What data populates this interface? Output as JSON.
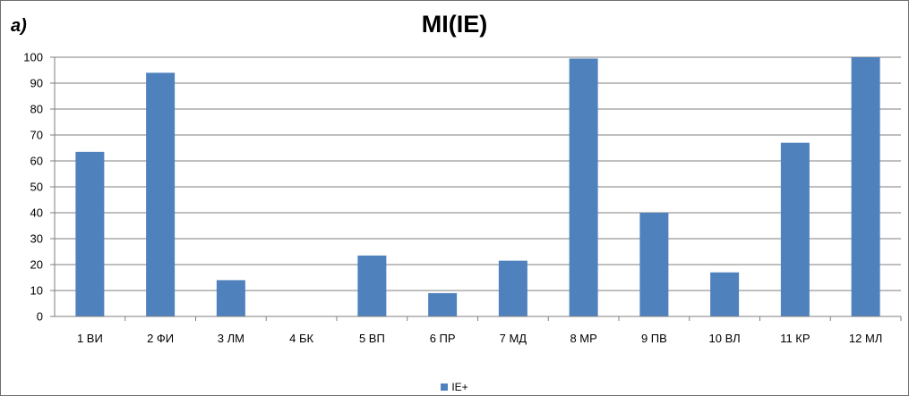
{
  "panel_label": "а)",
  "chart_data": {
    "type": "bar",
    "title": "MI(IE)",
    "categories": [
      "1 ВИ",
      "2 ФИ",
      "3 ЛМ",
      "4 БК",
      "5 ВП",
      "6 ПР",
      "7 МД",
      "8 МР",
      "9 ПВ",
      "10 ВЛ",
      "11 КР",
      "12 МЛ"
    ],
    "series": [
      {
        "name": "IE+",
        "values": [
          63.5,
          94,
          14,
          0,
          23.5,
          9,
          21.5,
          99.5,
          40,
          17,
          67,
          100
        ],
        "color": "#4f81bd"
      }
    ],
    "ylim": [
      0,
      100
    ],
    "yticks": [
      0,
      10,
      20,
      30,
      40,
      50,
      60,
      70,
      80,
      90,
      100
    ],
    "grid": true,
    "legend_position": "bottom"
  }
}
